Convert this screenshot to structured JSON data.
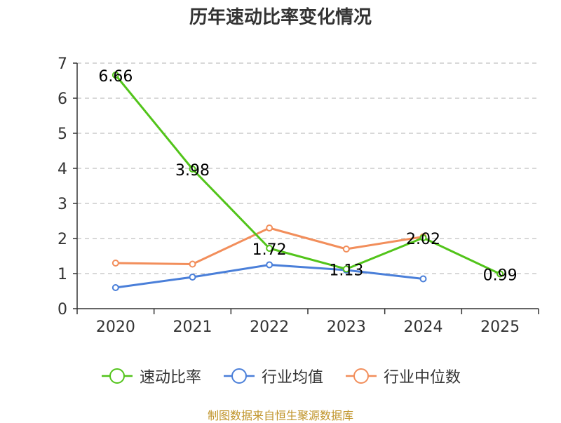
{
  "chart_data": {
    "type": "line",
    "title": "历年速动比率变化情况",
    "categories": [
      "2020",
      "2021",
      "2022",
      "2023",
      "2024",
      "2025"
    ],
    "ylim": [
      0,
      7
    ],
    "yticks": [
      "0",
      "1",
      "2",
      "3",
      "4",
      "5",
      "6",
      "7"
    ],
    "grid": true,
    "series": [
      {
        "name": "速动比率",
        "color": "#52c41a",
        "values": [
          6.66,
          3.98,
          1.72,
          1.13,
          2.02,
          0.99
        ],
        "labels": [
          "6.66",
          "3.98",
          "1.72",
          "1.13",
          "2.02",
          "0.99"
        ]
      },
      {
        "name": "行业均值",
        "color": "#4a7fd9",
        "values": [
          0.6,
          0.9,
          1.25,
          1.1,
          0.85,
          null
        ]
      },
      {
        "name": "行业中位数",
        "color": "#f28e5b",
        "values": [
          1.3,
          1.27,
          2.3,
          1.7,
          2.05,
          null
        ]
      }
    ],
    "legend_position": "bottom"
  },
  "source": "制图数据来自恒生聚源数据库"
}
